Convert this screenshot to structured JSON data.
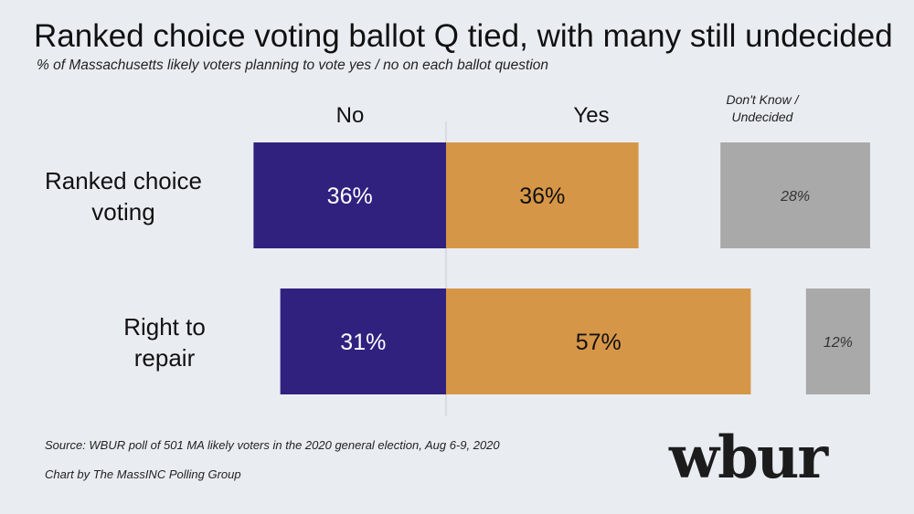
{
  "chart_data": {
    "type": "bar",
    "orientation": "horizontal-diverging",
    "title": "Ranked choice voting ballot Q tied, with many still undecided",
    "subtitle": "% of Massachusetts likely voters planning to vote yes / no on each ballot question",
    "categories": [
      "Ranked choice\nvoting",
      "Right to\nrepair"
    ],
    "series": [
      {
        "name": "No",
        "values": [
          36,
          31
        ],
        "labels": [
          "36%",
          "31%"
        ],
        "color": "#30217f"
      },
      {
        "name": "Yes",
        "values": [
          36,
          57
        ],
        "labels": [
          "36%",
          "57%"
        ],
        "color": "#d69647"
      },
      {
        "name": "Don't Know /\nUndecided",
        "values": [
          28,
          12
        ],
        "labels": [
          "28%",
          "12%"
        ],
        "color": "#a9a9a9"
      }
    ],
    "unit": "%"
  },
  "source": "Source: WBUR poll of 501 MA likely voters in the 2020 general election, Aug 6-9, 2020",
  "credit": "Chart by The MassINC Polling Group",
  "logo_text": "wbur"
}
